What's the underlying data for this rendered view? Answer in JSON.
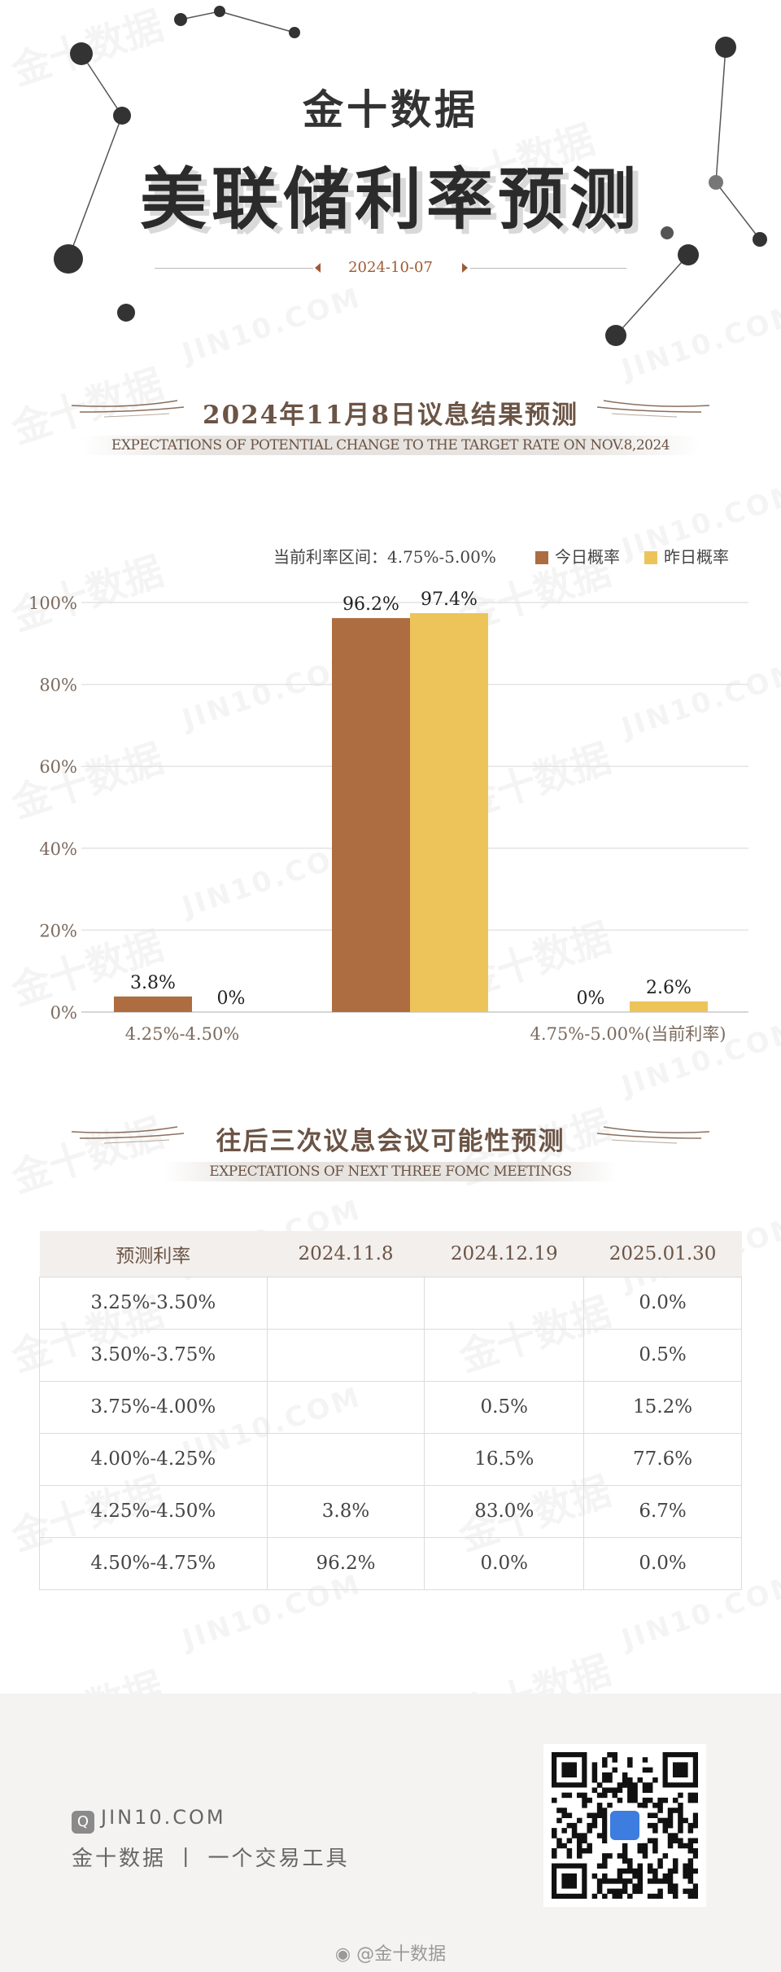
{
  "header": {
    "brand": "金十数据",
    "title": "美联储利率预测",
    "date": "2024-10-07"
  },
  "section1": {
    "title": "2024年11月8日议息结果预测",
    "subtitle": "EXPECTATIONS OF POTENTIAL CHANGE TO THE TARGET RATE ON NOV.8,2024"
  },
  "legend": {
    "current_rate": "当前利率区间：4.75%-5.00%",
    "today": "今日概率",
    "yesterday": "昨日概率"
  },
  "chart_data": {
    "type": "bar",
    "categories": [
      "4.25%-4.50%",
      "",
      "4.75%-5.00%(当前利率)"
    ],
    "series": [
      {
        "name": "今日概率",
        "values": [
          3.8,
          96.2,
          0
        ],
        "labels": [
          "3.8%",
          "96.2%",
          "0%"
        ],
        "color": "#ad6d40"
      },
      {
        "name": "昨日概率",
        "values": [
          0,
          97.4,
          2.6
        ],
        "labels": [
          "0%",
          "97.4%",
          "2.6%"
        ],
        "color": "#ecc45a"
      }
    ],
    "yticks": [
      "0%",
      "20%",
      "40%",
      "60%",
      "80%",
      "100%"
    ],
    "ylim": [
      0,
      100
    ],
    "grid": true,
    "legend_position": "top-right"
  },
  "section2": {
    "title": "往后三次议息会议可能性预测",
    "subtitle": "EXPECTATIONS OF NEXT THREE FOMC MEETINGS"
  },
  "table": {
    "headers": [
      "预测利率",
      "2024.11.8",
      "2024.12.19",
      "2025.01.30"
    ],
    "rows": [
      [
        "3.25%-3.50%",
        "",
        "",
        "0.0%"
      ],
      [
        "3.50%-3.75%",
        "",
        "",
        "0.5%"
      ],
      [
        "3.75%-4.00%",
        "",
        "0.5%",
        "15.2%"
      ],
      [
        "4.00%-4.25%",
        "",
        "16.5%",
        "77.6%"
      ],
      [
        "4.25%-4.50%",
        "3.8%",
        "83.0%",
        "6.7%"
      ],
      [
        "4.50%-4.75%",
        "96.2%",
        "0.0%",
        "0.0%"
      ]
    ]
  },
  "footer": {
    "site": "JIN10.COM",
    "tagline": "金十数据 丨 一个交易工具",
    "weibo": "@金十数据"
  },
  "colors": {
    "accent_brown": "#ad6d40",
    "accent_yellow": "#ecc45a",
    "heading": "#6b5445"
  }
}
